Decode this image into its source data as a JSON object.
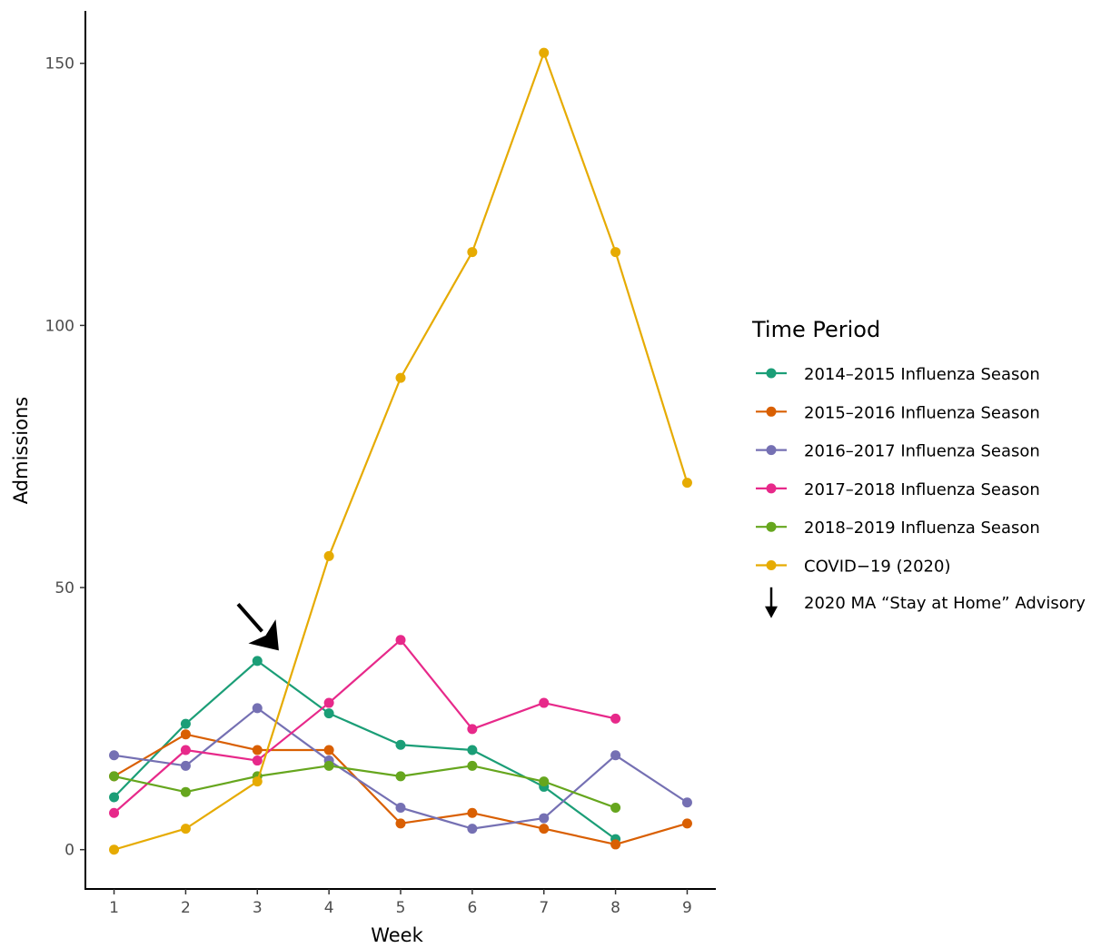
{
  "chart_data": {
    "type": "line",
    "xlabel": "Week",
    "ylabel": "Admissions",
    "x": [
      1,
      2,
      3,
      4,
      5,
      6,
      7,
      8,
      9
    ],
    "xlim": [
      0.6,
      9.4
    ],
    "ylim": [
      -7.5,
      160
    ],
    "xticks": [
      "1",
      "2",
      "3",
      "4",
      "5",
      "6",
      "7",
      "8",
      "9"
    ],
    "yticks": [
      "0",
      "50",
      "100",
      "150"
    ],
    "grid": false,
    "legend_title": "Time Period",
    "legend_position": "right",
    "series": [
      {
        "name": "2014–2015 Influenza Season",
        "color": "#1b9e77",
        "x": [
          1,
          2,
          3,
          4,
          5,
          6,
          7,
          8
        ],
        "values": [
          10,
          24,
          36,
          26,
          20,
          19,
          12,
          2
        ]
      },
      {
        "name": "2015–2016 Influenza Season",
        "color": "#d95f02",
        "x": [
          1,
          2,
          3,
          4,
          5,
          6,
          7,
          8,
          9
        ],
        "values": [
          14,
          22,
          19,
          19,
          5,
          7,
          4,
          1,
          5
        ]
      },
      {
        "name": "2016–2017 Influenza Season",
        "color": "#7570b3",
        "x": [
          1,
          2,
          3,
          4,
          5,
          6,
          7,
          8,
          9
        ],
        "values": [
          18,
          16,
          27,
          17,
          8,
          4,
          6,
          18,
          9
        ]
      },
      {
        "name": "2017–2018 Influenza Season",
        "color": "#e7298a",
        "x": [
          1,
          2,
          3,
          4,
          5,
          6,
          7,
          8
        ],
        "values": [
          7,
          19,
          17,
          28,
          40,
          23,
          28,
          25
        ]
      },
      {
        "name": "2018–2019 Influenza Season",
        "color": "#66a61e",
        "x": [
          1,
          2,
          3,
          4,
          5,
          6,
          7,
          8
        ],
        "values": [
          14,
          11,
          14,
          16,
          14,
          16,
          13,
          8
        ]
      },
      {
        "name": "COVID−19 (2020)",
        "color": "#e6ab02",
        "x": [
          1,
          2,
          3,
          4,
          5,
          6,
          7,
          8,
          9
        ],
        "values": [
          0,
          4,
          13,
          56,
          90,
          114,
          152,
          114,
          70
        ]
      }
    ],
    "annotation": {
      "label": "2020 MA “Stay at Home” Advisory",
      "type": "arrow",
      "x": 3.3,
      "y": 38
    }
  }
}
